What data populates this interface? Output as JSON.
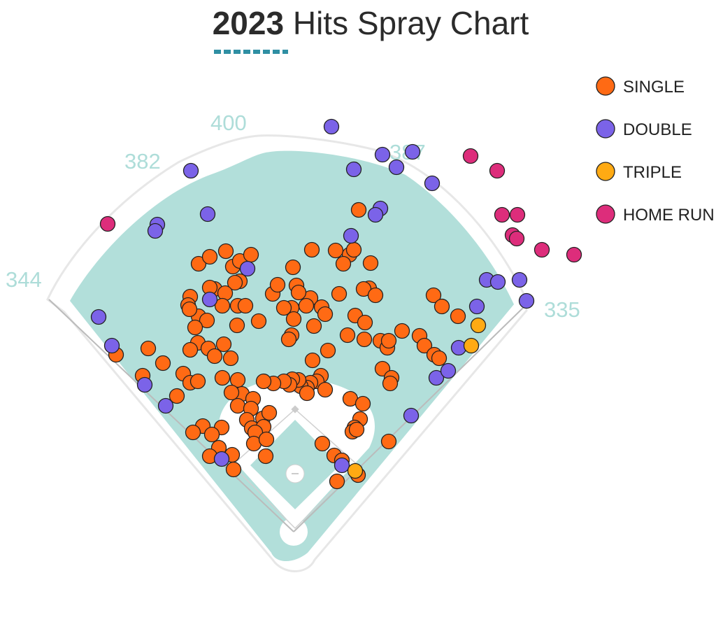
{
  "title": {
    "year": "2023",
    "rest": "Hits Spray Chart"
  },
  "colors": {
    "grass": "#b2dfda",
    "wall": "#e7e7e7",
    "dirt": "#ffffff",
    "line": "#bbbbbb",
    "accent": "#2f8fa3"
  },
  "chart_data": {
    "type": "scatter",
    "title": "2023 Hits Spray Chart",
    "field_distances": {
      "left_line": "344",
      "left_center": "382",
      "center": "400",
      "right_center": "387",
      "right_line": "335"
    },
    "legend_placement": "top-right",
    "series": [
      {
        "name": "SINGLE",
        "color": "#ff6a14",
        "points": [
          [
            284,
            377
          ],
          [
            300,
            367
          ],
          [
            323,
            359
          ],
          [
            333,
            381
          ],
          [
            343,
            373
          ],
          [
            359,
            364
          ],
          [
            343,
            402
          ],
          [
            336,
            404
          ],
          [
            307,
            413
          ],
          [
            322,
            419
          ],
          [
            272,
            424
          ],
          [
            269,
            436
          ],
          [
            284,
            452
          ],
          [
            296,
            458
          ],
          [
            279,
            468
          ],
          [
            283,
            490
          ],
          [
            272,
            500
          ],
          [
            298,
            498
          ],
          [
            307,
            509
          ],
          [
            320,
            492
          ],
          [
            330,
            512
          ],
          [
            318,
            540
          ],
          [
            340,
            543
          ],
          [
            346,
            563
          ],
          [
            362,
            570
          ],
          [
            340,
            580
          ],
          [
            359,
            584
          ],
          [
            353,
            600
          ],
          [
            360,
            612
          ],
          [
            376,
            598
          ],
          [
            385,
            590
          ],
          [
            377,
            610
          ],
          [
            365,
            618
          ],
          [
            363,
            634
          ],
          [
            381,
            628
          ],
          [
            380,
            652
          ],
          [
            332,
            650
          ],
          [
            313,
            640
          ],
          [
            317,
            611
          ],
          [
            290,
            609
          ],
          [
            276,
            618
          ],
          [
            303,
            621
          ],
          [
            300,
            652
          ],
          [
            262,
            534
          ],
          [
            253,
            566
          ],
          [
            272,
            547
          ],
          [
            283,
            545
          ],
          [
            204,
            537
          ],
          [
            212,
            498
          ],
          [
            233,
            519
          ],
          [
            166,
            507
          ],
          [
            339,
            465
          ],
          [
            340,
            437
          ],
          [
            351,
            437
          ],
          [
            370,
            459
          ],
          [
            390,
            420
          ],
          [
            397,
            407
          ],
          [
            419,
            382
          ],
          [
            446,
            357
          ],
          [
            480,
            358
          ],
          [
            500,
            364
          ],
          [
            506,
            357
          ],
          [
            513,
            300
          ],
          [
            491,
            377
          ],
          [
            530,
            376
          ],
          [
            528,
            412
          ],
          [
            520,
            413
          ],
          [
            537,
            422
          ],
          [
            485,
            420
          ],
          [
            424,
            408
          ],
          [
            444,
            426
          ],
          [
            417,
            440
          ],
          [
            406,
            440
          ],
          [
            438,
            437
          ],
          [
            460,
            439
          ],
          [
            465,
            449
          ],
          [
            449,
            466
          ],
          [
            420,
            456
          ],
          [
            417,
            479
          ],
          [
            413,
            485
          ],
          [
            469,
            501
          ],
          [
            447,
            515
          ],
          [
            508,
            451
          ],
          [
            522,
            461
          ],
          [
            544,
            487
          ],
          [
            554,
            497
          ],
          [
            575,
            473
          ],
          [
            600,
            480
          ],
          [
            607,
            494
          ],
          [
            621,
            507
          ],
          [
            628,
            512
          ],
          [
            620,
            422
          ],
          [
            632,
            438
          ],
          [
            655,
            452
          ],
          [
            556,
            487
          ],
          [
            547,
            527
          ],
          [
            560,
            540
          ],
          [
            558,
            548
          ],
          [
            497,
            479
          ],
          [
            521,
            485
          ],
          [
            459,
            537
          ],
          [
            453,
            545
          ],
          [
            444,
            547
          ],
          [
            439,
            554
          ],
          [
            430,
            552
          ],
          [
            427,
            543
          ],
          [
            418,
            542
          ],
          [
            414,
            550
          ],
          [
            439,
            562
          ],
          [
            465,
            557
          ],
          [
            406,
            545
          ],
          [
            391,
            548
          ],
          [
            377,
            545
          ],
          [
            331,
            561
          ],
          [
            501,
            570
          ],
          [
            519,
            577
          ],
          [
            515,
            599
          ],
          [
            507,
            611
          ],
          [
            504,
            617
          ],
          [
            510,
            614
          ],
          [
            556,
            631
          ],
          [
            461,
            634
          ],
          [
            478,
            651
          ],
          [
            489,
            658
          ],
          [
            482,
            688
          ],
          [
            512,
            679
          ],
          [
            334,
            671
          ],
          [
            318,
            437
          ],
          [
            300,
            411
          ],
          [
            271,
            442
          ],
          [
            427,
            418
          ]
        ]
      },
      {
        "name": "DOUBLE",
        "color": "#7b63e8",
        "points": [
          [
            474,
            181
          ],
          [
            273,
            244
          ],
          [
            506,
            242
          ],
          [
            547,
            221
          ],
          [
            567,
            239
          ],
          [
            590,
            217
          ],
          [
            618,
            262
          ],
          [
            544,
            298
          ],
          [
            537,
            307
          ],
          [
            502,
            337
          ],
          [
            297,
            306
          ],
          [
            225,
            321
          ],
          [
            222,
            330
          ],
          [
            354,
            384
          ],
          [
            300,
            428
          ],
          [
            141,
            453
          ],
          [
            160,
            494
          ],
          [
            207,
            550
          ],
          [
            237,
            580
          ],
          [
            317,
            656
          ],
          [
            588,
            594
          ],
          [
            624,
            540
          ],
          [
            641,
            530
          ],
          [
            656,
            497
          ],
          [
            682,
            438
          ],
          [
            696,
            400
          ],
          [
            712,
            403
          ],
          [
            743,
            400
          ],
          [
            753,
            430
          ],
          [
            489,
            665
          ]
        ]
      },
      {
        "name": "TRIPLE",
        "color": "#ffaa13",
        "points": [
          [
            684,
            465
          ],
          [
            674,
            494
          ],
          [
            508,
            673
          ]
        ]
      },
      {
        "name": "HOME RUN",
        "color": "#dd2d7b",
        "points": [
          [
            154,
            320
          ],
          [
            673,
            223
          ],
          [
            711,
            244
          ],
          [
            718,
            307
          ],
          [
            740,
            307
          ],
          [
            733,
            336
          ],
          [
            739,
            341
          ],
          [
            775,
            357
          ],
          [
            821,
            364
          ]
        ]
      }
    ]
  }
}
